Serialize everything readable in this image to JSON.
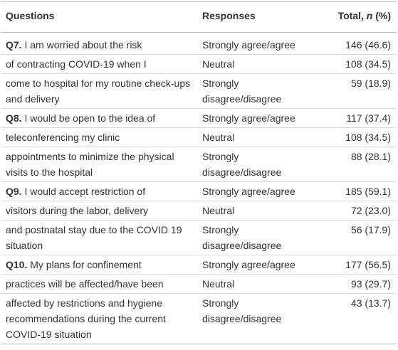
{
  "header": {
    "questions": "Questions",
    "responses": "Responses",
    "total": {
      "prefix": "Total, ",
      "italic": "n",
      "suffix": " (%)"
    }
  },
  "groups": [
    {
      "label": "Q7.",
      "rows": [
        {
          "question": "I am worried about the risk",
          "response": "Strongly agree/agree",
          "total": "146 (46.6)"
        },
        {
          "question": "of contracting COVID-19 when I",
          "response": "Neutral",
          "total": "108 (34.5)"
        },
        {
          "question": "come to hospital for my routine check-ups and delivery",
          "response": "Strongly disagree/disagree",
          "total": "59 (18.9)"
        }
      ]
    },
    {
      "label": "Q8.",
      "rows": [
        {
          "question": "I would be open to the idea of",
          "response": "Strongly agree/agree",
          "total": "117 (37.4)"
        },
        {
          "question": "teleconferencing my clinic",
          "response": "Neutral",
          "total": "108 (34.5)"
        },
        {
          "question": "appointments to minimize the physical visits to the hospital",
          "response": "Strongly disagree/disagree",
          "total": "88 (28.1)"
        }
      ]
    },
    {
      "label": "Q9.",
      "rows": [
        {
          "question": "I would accept restriction of",
          "response": "Strongly agree/agree",
          "total": "185 (59.1)"
        },
        {
          "question": "visitors during the labor, delivery",
          "response": "Neutral",
          "total": "72 (23.0)"
        },
        {
          "question": "and postnatal stay due to the COVID 19 situation",
          "response": "Strongly disagree/disagree",
          "total": "56 (17.9)"
        }
      ]
    },
    {
      "label": "Q10.",
      "rows": [
        {
          "question": "My plans for confinement",
          "response": "Strongly agree/agree",
          "total": "177 (56.5)"
        },
        {
          "question": "practices will be affected/have been",
          "response": "Neutral",
          "total": "93 (29.7)"
        },
        {
          "question": "affected by restrictions and hygiene recommendations during the current COVID-19 situation",
          "response": "Strongly disagree/disagree",
          "total": "43 (13.7)"
        }
      ]
    }
  ]
}
